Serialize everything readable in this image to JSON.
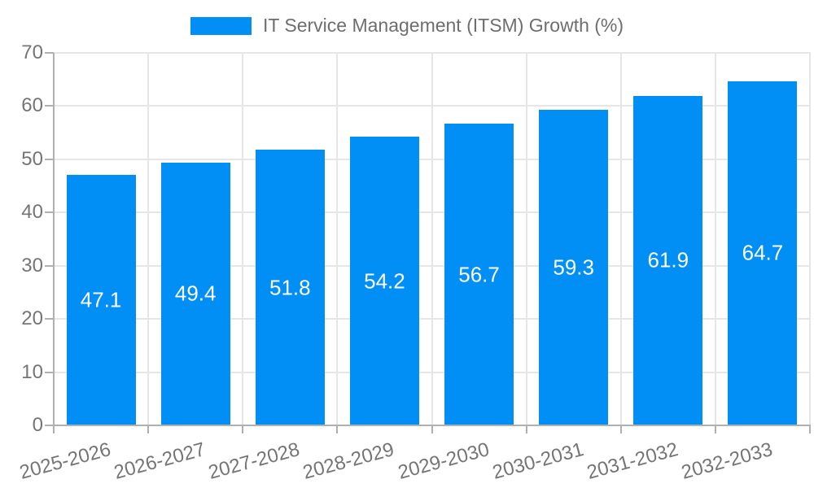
{
  "legend": {
    "label": "IT Service Management (ITSM) Growth (%)"
  },
  "chart_data": {
    "type": "bar",
    "title": "IT Service Management (ITSM) Growth (%)",
    "series_name": "IT Service Management (ITSM) Growth (%)",
    "categories": [
      "2025-2026",
      "2026-2027",
      "2027-2028",
      "2028-2029",
      "2029-2030",
      "2030-2031",
      "2031-2032",
      "2032-2033"
    ],
    "values": [
      47.1,
      49.4,
      51.8,
      54.2,
      56.7,
      59.3,
      61.9,
      64.7
    ],
    "value_labels": [
      "47.1",
      "49.4",
      "51.8",
      "54.2",
      "56.7",
      "59.3",
      "61.9",
      "64.7"
    ],
    "xlabel": "",
    "ylabel": "",
    "ylim": [
      0,
      70
    ],
    "yticks": [
      0,
      10,
      20,
      30,
      40,
      50,
      60,
      70
    ],
    "grid": true,
    "legend_position": "top-center",
    "bar_color": "#018ef5",
    "value_label_color": "#ffffff",
    "axis_color": "#b0b0b0",
    "grid_color": "#e6e6e6",
    "tick_label_color": "#757575"
  }
}
